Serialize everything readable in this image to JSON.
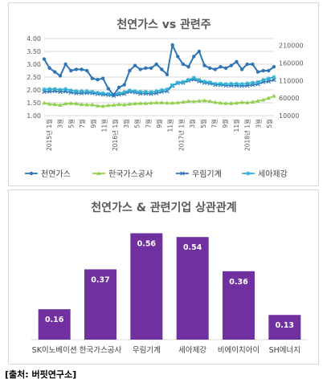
{
  "source_note": "[출처: 버핏연구소]",
  "colors": {
    "gas": "#2e75b6",
    "kogas": "#92d050",
    "woorim": "#2e75b6",
    "seah": "#31b0d5",
    "bar": "#7030a0",
    "grid": "#d9d9d9",
    "axis_text": "#595959"
  },
  "chart_data": [
    {
      "type": "line",
      "title": "천연가스 vs 관련주",
      "x_tick_labels": [
        "2015년 1월",
        "3월",
        "5월",
        "7월",
        "9월",
        "11월",
        "2016년 1월",
        "3월",
        "5월",
        "7월",
        "9월",
        "11월",
        "2017년 1월",
        "3월",
        "5월",
        "7월",
        "9월",
        "11월",
        "2018년 1월",
        "3월",
        "5월"
      ],
      "left_axis": {
        "ylim": [
          1.0,
          4.0
        ],
        "ticks": [
          "1.00",
          "1.50",
          "2.00",
          "2.50",
          "3.00",
          "3.50",
          "4.00"
        ]
      },
      "right_axis": {
        "ylim": [
          10000,
          230000
        ],
        "ticks": [
          "10000",
          "60000",
          "110000",
          "160000",
          "210000"
        ]
      },
      "legend_position": "bottom",
      "series": [
        {
          "name": "천연가스",
          "axis": "left",
          "marker": "circle",
          "values": [
            3.2,
            2.85,
            2.7,
            2.55,
            3.0,
            2.75,
            2.8,
            2.8,
            2.75,
            2.45,
            2.4,
            2.45,
            2.05,
            1.8,
            2.1,
            2.2,
            2.75,
            2.95,
            2.8,
            2.85,
            2.85,
            3.0,
            2.8,
            2.6,
            3.75,
            3.3,
            3.0,
            2.9,
            3.3,
            3.5,
            2.95,
            2.85,
            2.8,
            2.9,
            2.85,
            2.95,
            3.1,
            2.8,
            3.0,
            3.0,
            2.7,
            2.75,
            2.75,
            2.9
          ]
        },
        {
          "name": "한국가스공사",
          "axis": "right",
          "marker": "triangle",
          "values": [
            46000,
            43000,
            42000,
            40000,
            44000,
            45000,
            44000,
            42000,
            41000,
            41000,
            38000,
            37000,
            39000,
            40000,
            42000,
            41000,
            43000,
            44000,
            45000,
            45000,
            46000,
            47000,
            47000,
            46000,
            46000,
            47000,
            49000,
            51000,
            50000,
            52000,
            53000,
            51000,
            48000,
            46000,
            45000,
            45000,
            46000,
            48000,
            47000,
            49000,
            52000,
            55000,
            60000,
            66000
          ]
        },
        {
          "name": "우림기계",
          "axis": "right",
          "marker": "x",
          "values": [
            78000,
            79000,
            80000,
            78000,
            79000,
            76000,
            74000,
            74000,
            75000,
            74000,
            72000,
            70000,
            69000,
            67000,
            70000,
            72000,
            78000,
            76000,
            73000,
            73000,
            72000,
            74000,
            78000,
            80000,
            95000,
            103000,
            104000,
            110000,
            113000,
            108000,
            104000,
            102000,
            98000,
            98000,
            96000,
            96000,
            96000,
            95000,
            96000,
            98000,
            100000,
            106000,
            108000,
            112000
          ]
        },
        {
          "name": "세아제강",
          "axis": "right",
          "marker": "star",
          "values": [
            85000,
            86000,
            86000,
            84000,
            86000,
            82000,
            80000,
            80000,
            80000,
            78000,
            75000,
            74000,
            72000,
            70000,
            74000,
            77000,
            82000,
            80000,
            78000,
            78000,
            77000,
            80000,
            83000,
            85000,
            97000,
            104000,
            106000,
            112000,
            118000,
            112000,
            107000,
            105000,
            101000,
            101000,
            100000,
            101000,
            101000,
            100000,
            102000,
            104000,
            106000,
            112000,
            116000,
            120000
          ]
        }
      ]
    },
    {
      "type": "bar",
      "title": "천연가스 & 관련기업 상관관계",
      "categories": [
        "SK이노베이션",
        "한국가스공사",
        "우림기계",
        "세아제강",
        "비에이치아이",
        "SH에너지"
      ],
      "values": [
        0.16,
        0.37,
        0.56,
        0.54,
        0.36,
        0.13
      ],
      "data_labels": [
        "0.16",
        "0.37",
        "0.56",
        "0.54",
        "0.36",
        "0.13"
      ],
      "ylim": [
        0,
        0.6
      ]
    }
  ]
}
